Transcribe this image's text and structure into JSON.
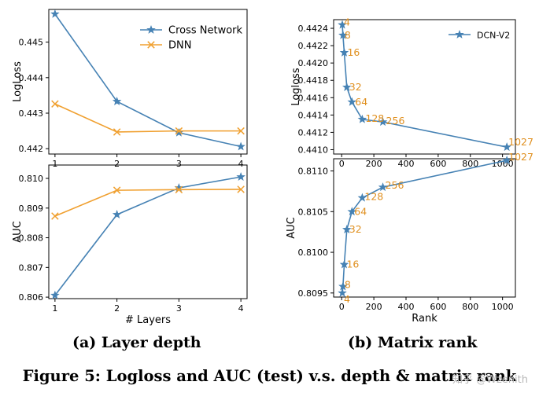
{
  "captions": {
    "subfig_a": "(a) Layer depth",
    "subfig_b": "(b) Matrix rank",
    "figure": "Figure 5: Logloss and AUC (test) v.s. depth & matrix rank",
    "watermark": "知乎 @Wzenith"
  },
  "colors": {
    "cross": "#4682b4",
    "dnn": "#f0a030",
    "axis": "#000000",
    "annot": "#e09020"
  },
  "chart_data": [
    {
      "type": "line",
      "ylabel": "LogLoss",
      "xlabel": "",
      "x": [
        1,
        2,
        3,
        4
      ],
      "xticks": [
        "1",
        "2",
        "3",
        "4"
      ],
      "xlim": [
        0.9,
        4.1
      ],
      "ylim": [
        0.44185,
        0.44592
      ],
      "yticks": [
        0.442,
        0.443,
        0.444,
        0.445
      ],
      "ytick_labels": [
        "0.442",
        "0.443",
        "0.444",
        "0.445"
      ],
      "legend": "top-right",
      "series": [
        {
          "name": "Cross Network",
          "values": [
            0.44579,
            0.44333,
            0.44245,
            0.44206
          ],
          "marker": "star",
          "color": "#4682b4"
        },
        {
          "name": "DNN",
          "values": [
            0.44326,
            0.44247,
            0.4425,
            0.4425
          ],
          "marker": "x",
          "color": "#f0a030"
        }
      ]
    },
    {
      "type": "line",
      "ylabel": "AUC",
      "xlabel": "# Layers",
      "x": [
        1,
        2,
        3,
        4
      ],
      "xticks": [
        "1",
        "2",
        "3",
        "4"
      ],
      "xlim": [
        0.9,
        4.1
      ],
      "ylim": [
        0.80595,
        0.81045
      ],
      "yticks": [
        0.806,
        0.807,
        0.808,
        0.809,
        0.81
      ],
      "ytick_labels": [
        "0.806",
        "0.807",
        "0.808",
        "0.809",
        "0.810"
      ],
      "series": [
        {
          "name": "Cross Network",
          "values": [
            0.80606,
            0.80878,
            0.80968,
            0.81005
          ],
          "marker": "star",
          "color": "#4682b4"
        },
        {
          "name": "DNN",
          "values": [
            0.80873,
            0.8096,
            0.80962,
            0.80963
          ],
          "marker": "x",
          "color": "#f0a030"
        }
      ]
    },
    {
      "type": "line",
      "ylabel": "Logloss",
      "xlabel": "",
      "xlim": [
        -50,
        1080
      ],
      "xticks": [
        0,
        200,
        400,
        600,
        800,
        1000
      ],
      "xtick_labels": [
        "0",
        "200",
        "400",
        "600",
        "800",
        "1000"
      ],
      "ylim": [
        0.44095,
        0.4425
      ],
      "yticks": [
        0.441,
        0.4412,
        0.4414,
        0.4416,
        0.4418,
        0.442,
        0.4422,
        0.4424
      ],
      "ytick_labels": [
        "0.4410",
        "0.4412",
        "0.4414",
        "0.4416",
        "0.4418",
        "0.4420",
        "0.4422",
        "0.4424"
      ],
      "legend": "top-right",
      "series": [
        {
          "name": "DCN-V2",
          "x": [
            4,
            8,
            16,
            32,
            64,
            128,
            256,
            1027
          ],
          "values": [
            0.44244,
            0.44232,
            0.44212,
            0.44172,
            0.44155,
            0.44135,
            0.44132,
            0.44103
          ],
          "point_labels": [
            "4",
            "8",
            "16",
            "32",
            "64",
            "128",
            "256",
            "1027"
          ],
          "marker": "star",
          "color": "#4682b4"
        }
      ]
    },
    {
      "type": "line",
      "ylabel": "AUC",
      "xlabel": "Rank",
      "xlim": [
        -50,
        1080
      ],
      "xticks": [
        0,
        200,
        400,
        600,
        800,
        1000
      ],
      "xtick_labels": [
        "0",
        "200",
        "400",
        "600",
        "800",
        "1000"
      ],
      "ylim": [
        0.80945,
        0.81115
      ],
      "yticks": [
        0.8095,
        0.81,
        0.8105,
        0.811
      ],
      "ytick_labels": [
        "0.8095",
        "0.8100",
        "0.8105",
        "0.8110"
      ],
      "series": [
        {
          "name": "DCN-V2",
          "x": [
            4,
            8,
            16,
            32,
            64,
            128,
            256,
            1027
          ],
          "values": [
            0.8095,
            0.80958,
            0.80985,
            0.81028,
            0.8105,
            0.81067,
            0.8108,
            0.81113
          ],
          "point_labels": [
            "4",
            "8",
            "16",
            "32",
            "64",
            "128",
            "256",
            "1027"
          ],
          "marker": "star",
          "color": "#4682b4"
        }
      ]
    }
  ]
}
